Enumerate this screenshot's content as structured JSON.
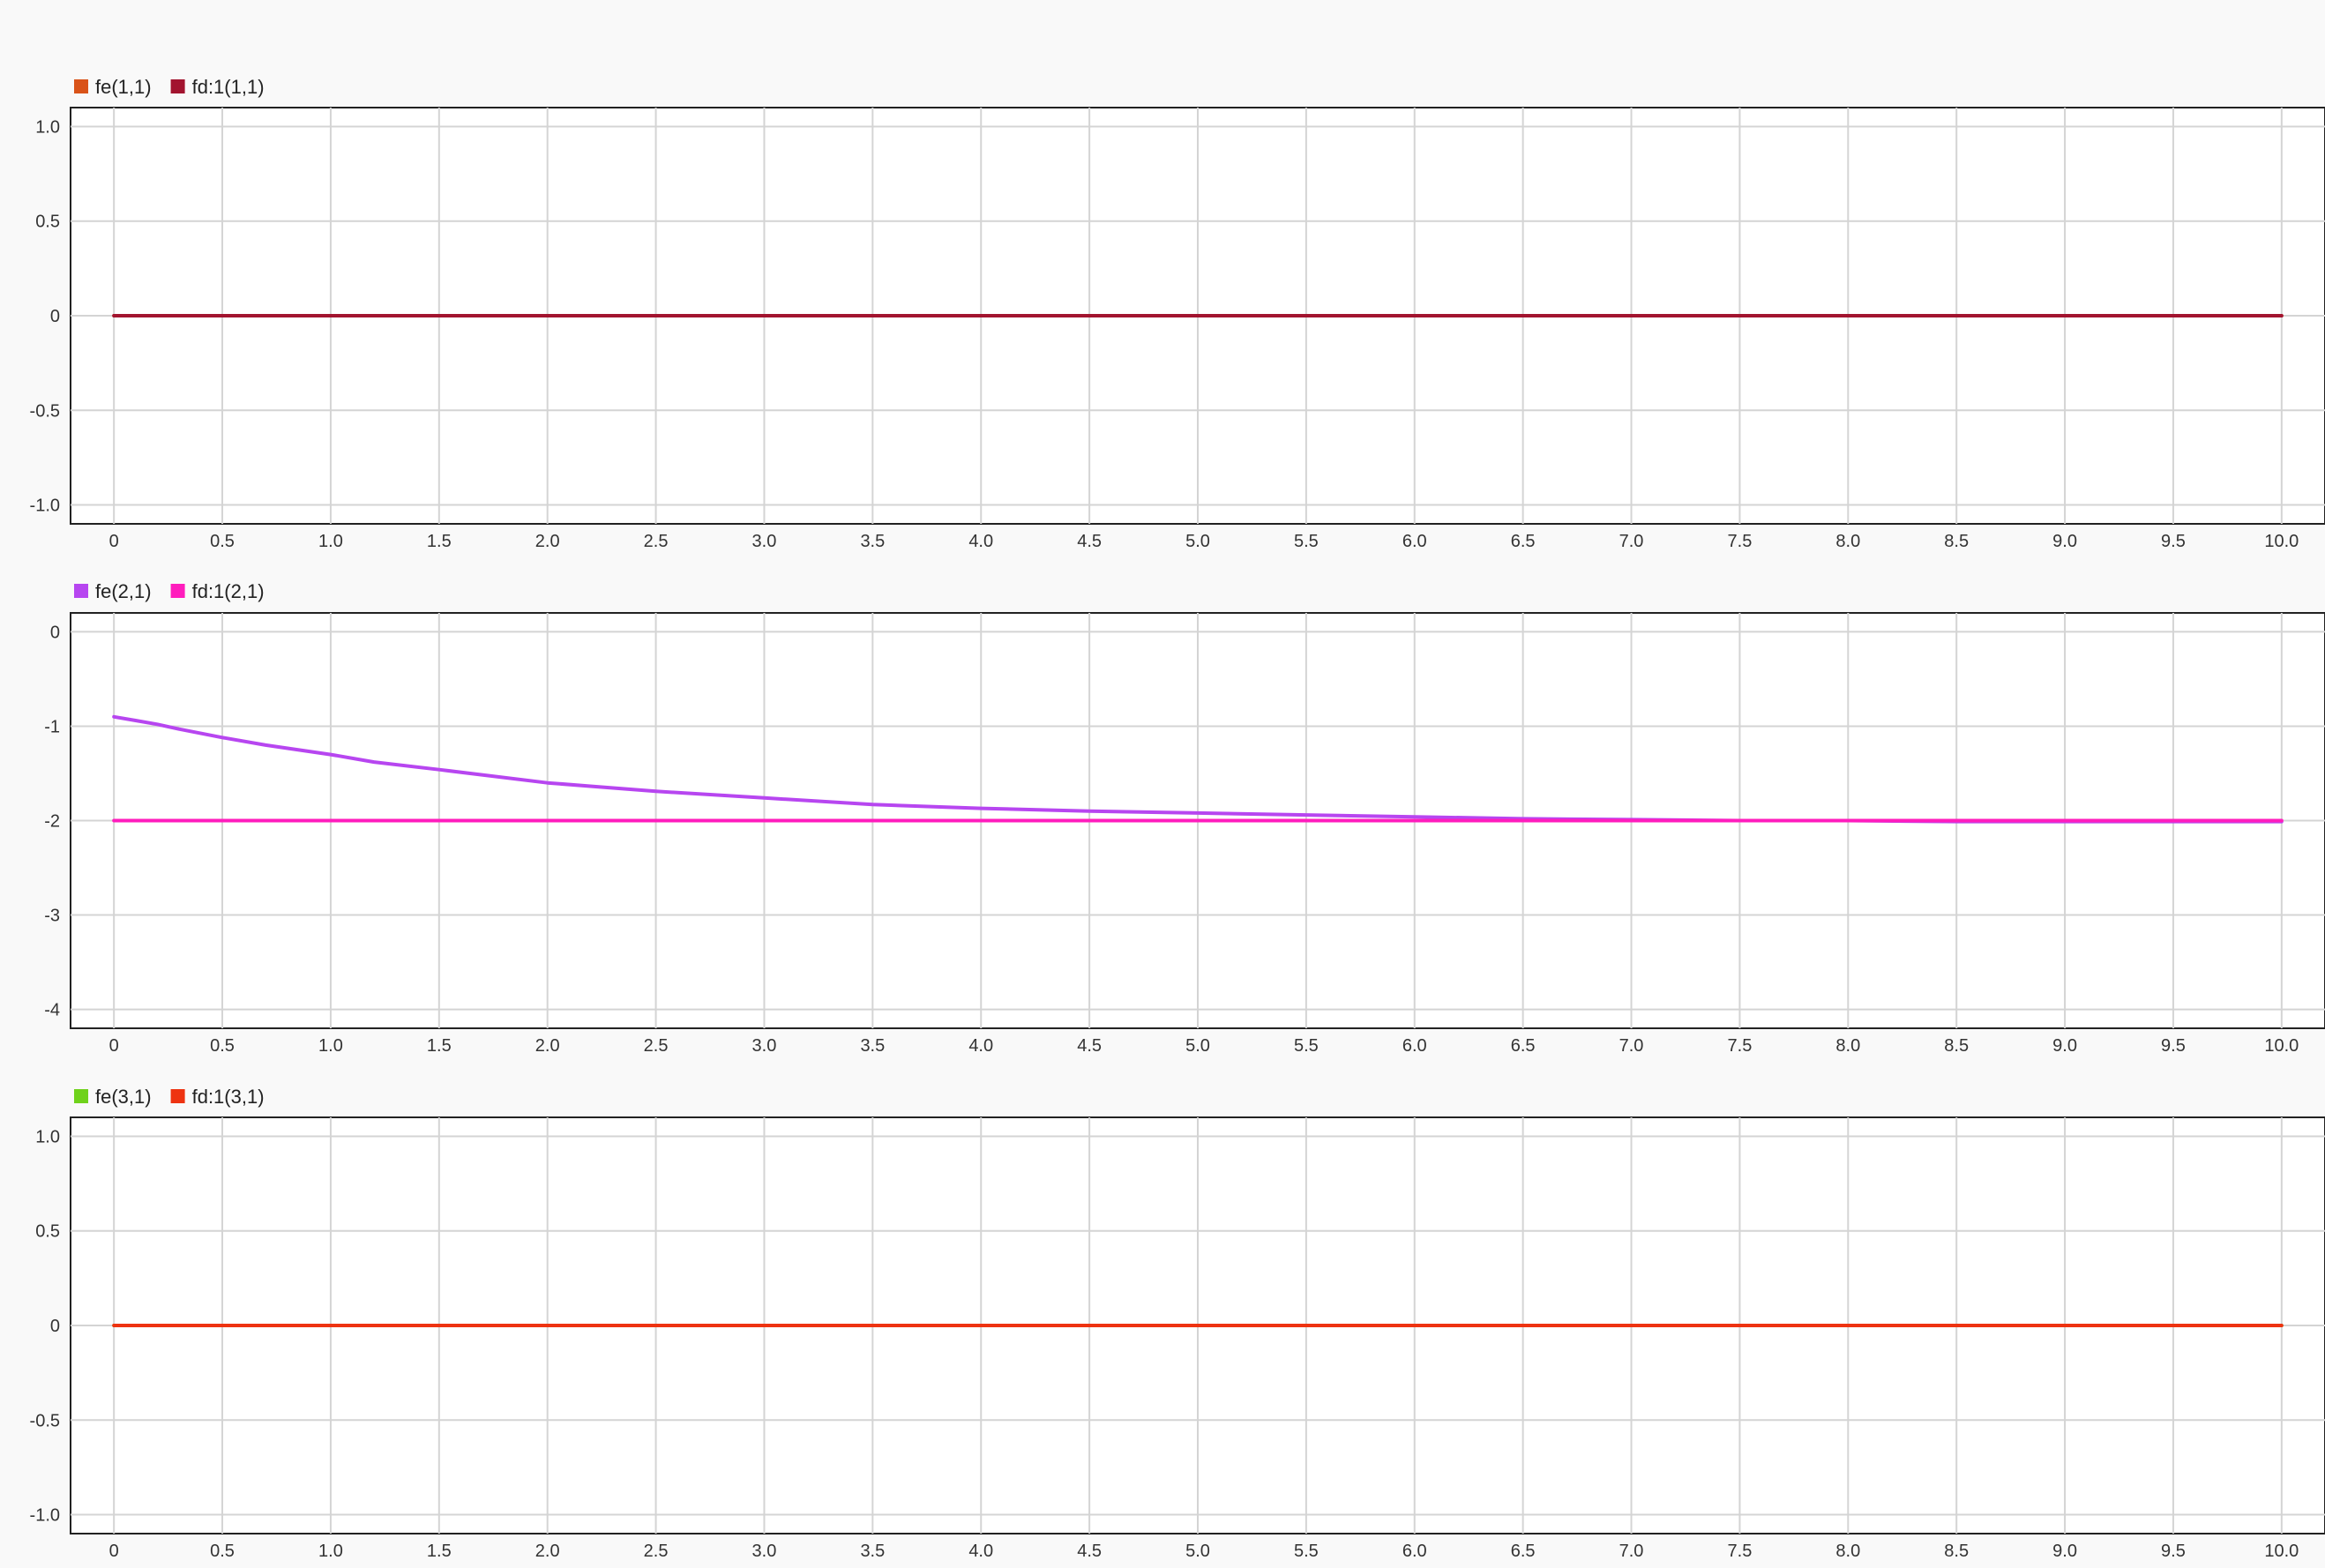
{
  "chart_data": [
    {
      "type": "line",
      "x_ticks": [
        "0",
        "0.5",
        "1.0",
        "1.5",
        "2.0",
        "2.5",
        "3.0",
        "3.5",
        "4.0",
        "4.5",
        "5.0",
        "5.5",
        "6.0",
        "6.5",
        "7.0",
        "7.5",
        "8.0",
        "8.5",
        "9.0",
        "9.5",
        "10.0"
      ],
      "y_ticks": [
        "1.0",
        "0.5",
        "0",
        "-0.5",
        "-1.0"
      ],
      "xlim": [
        -0.2,
        10.2
      ],
      "ylim": [
        -1.1,
        1.1
      ],
      "grid": true,
      "legend_position": "top-left",
      "series": [
        {
          "name": "fe(1,1)",
          "color": "#d95319",
          "x": [
            0,
            10
          ],
          "y": [
            0,
            0
          ]
        },
        {
          "name": "fd:1(1,1)",
          "color": "#a2142f",
          "x": [
            0,
            10
          ],
          "y": [
            0,
            0
          ]
        }
      ]
    },
    {
      "type": "line",
      "x_ticks": [
        "0",
        "0.5",
        "1.0",
        "1.5",
        "2.0",
        "2.5",
        "3.0",
        "3.5",
        "4.0",
        "4.5",
        "5.0",
        "5.5",
        "6.0",
        "6.5",
        "7.0",
        "7.5",
        "8.0",
        "8.5",
        "9.0",
        "9.5",
        "10.0"
      ],
      "y_ticks": [
        "0",
        "-1",
        "-2",
        "-3",
        "-4"
      ],
      "xlim": [
        -0.2,
        10.2
      ],
      "ylim": [
        -4.2,
        0.2
      ],
      "grid": true,
      "legend_position": "top-left",
      "series": [
        {
          "name": "fe(2,1)",
          "color": "#b746f0",
          "x": [
            0,
            0.1,
            0.2,
            0.3,
            0.5,
            0.7,
            1.0,
            1.2,
            1.5,
            2.0,
            2.5,
            3.0,
            3.5,
            4.0,
            4.5,
            5.0,
            5.5,
            6.0,
            6.5,
            7.0,
            7.5,
            8.0,
            8.5,
            9.0,
            9.5,
            10.0
          ],
          "y": [
            -0.9,
            -0.94,
            -0.98,
            -1.03,
            -1.12,
            -1.2,
            -1.3,
            -1.38,
            -1.46,
            -1.6,
            -1.69,
            -1.76,
            -1.83,
            -1.87,
            -1.9,
            -1.92,
            -1.94,
            -1.96,
            -1.98,
            -1.99,
            -2.0,
            -2.0,
            -2.01,
            -2.01,
            -2.01,
            -2.01
          ]
        },
        {
          "name": "fd:1(2,1)",
          "color": "#ff1dbd",
          "x": [
            0,
            10
          ],
          "y": [
            -2,
            -2
          ]
        }
      ]
    },
    {
      "type": "line",
      "x_ticks": [
        "0",
        "0.5",
        "1.0",
        "1.5",
        "2.0",
        "2.5",
        "3.0",
        "3.5",
        "4.0",
        "4.5",
        "5.0",
        "5.5",
        "6.0",
        "6.5",
        "7.0",
        "7.5",
        "8.0",
        "8.5",
        "9.0",
        "9.5",
        "10.0"
      ],
      "y_ticks": [
        "1.0",
        "0.5",
        "0",
        "-0.5",
        "-1.0"
      ],
      "xlim": [
        -0.2,
        10.2
      ],
      "ylim": [
        -1.1,
        1.1
      ],
      "grid": true,
      "legend_position": "top-left",
      "series": [
        {
          "name": "fe(3,1)",
          "color": "#6fd21b",
          "x": [
            0,
            10
          ],
          "y": [
            0,
            0
          ]
        },
        {
          "name": "fd:1(3,1)",
          "color": "#ee3311",
          "x": [
            0,
            10
          ],
          "y": [
            0,
            0
          ]
        }
      ]
    }
  ]
}
